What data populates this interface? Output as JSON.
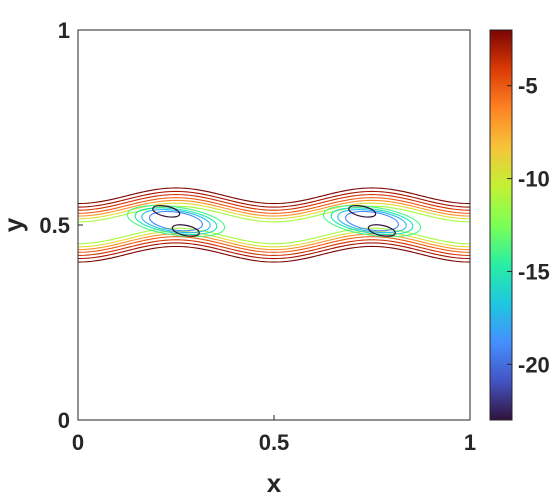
{
  "chart_data": {
    "type": "contour",
    "xlabel": "x",
    "ylabel": "y",
    "xlim": [
      0,
      1
    ],
    "ylim": [
      0,
      1
    ],
    "x_ticks": [
      "0",
      "0.5",
      "1"
    ],
    "y_ticks": [
      "0",
      "0.5",
      "1"
    ],
    "colorbar": {
      "colormap": "turbo",
      "range": [
        -23,
        -2
      ],
      "tick_values": [
        -5,
        -10,
        -15,
        -20
      ],
      "tick_labels": [
        "-5",
        "-10",
        "-15",
        "-20"
      ]
    },
    "wave": {
      "center_y": 0.5,
      "amplitude": 0.02,
      "period_x": 0.5,
      "phase_peak_x": 0.25
    },
    "contour_bands": [
      {
        "level": -3,
        "half_width": 0.075,
        "color": "#7a0403"
      },
      {
        "level": -4,
        "half_width": 0.066,
        "color": "#a51301"
      },
      {
        "level": -6,
        "half_width": 0.058,
        "color": "#d23105"
      },
      {
        "level": -8,
        "half_width": 0.05,
        "color": "#f05b12"
      },
      {
        "level": -10,
        "half_width": 0.043,
        "color": "#fe922a"
      },
      {
        "level": -12,
        "half_width": 0.036,
        "color": "#e1dd37"
      },
      {
        "level": -14,
        "half_width": 0.028,
        "color": "#a4fc3c"
      }
    ],
    "inner_loops": [
      {
        "level": -15,
        "color": "#46f884",
        "cx": [
          0.25,
          0.75
        ],
        "cy": 0.51,
        "rx": 0.125,
        "ry": 0.036
      },
      {
        "level": -17,
        "color": "#1ae4b6",
        "cx": [
          0.25,
          0.75
        ],
        "cy": 0.51,
        "rx": 0.105,
        "ry": 0.031
      },
      {
        "level": -19,
        "color": "#28bceb",
        "cx": [
          0.25,
          0.75
        ],
        "cy": 0.51,
        "rx": 0.088,
        "ry": 0.027
      },
      {
        "level": -21,
        "color": "#4686fb",
        "cx": [
          0.25,
          0.75
        ],
        "cy": 0.51,
        "rx": 0.068,
        "ry": 0.023
      }
    ],
    "vortex_cores": [
      {
        "level": -23,
        "color": "#30123b",
        "cx": 0.225,
        "cy": 0.535,
        "rx": 0.035,
        "ry": 0.013
      },
      {
        "level": -23,
        "color": "#30123b",
        "cx": 0.275,
        "cy": 0.486,
        "rx": 0.035,
        "ry": 0.013
      },
      {
        "level": -23,
        "color": "#30123b",
        "cx": 0.725,
        "cy": 0.535,
        "rx": 0.035,
        "ry": 0.013
      },
      {
        "level": -23,
        "color": "#30123b",
        "cx": 0.775,
        "cy": 0.486,
        "rx": 0.035,
        "ry": 0.013
      }
    ]
  }
}
